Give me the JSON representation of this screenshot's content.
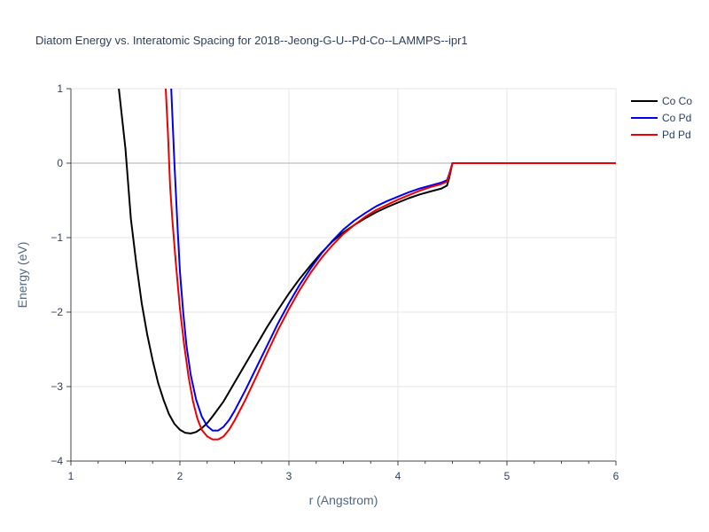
{
  "chart_data": {
    "type": "line",
    "title": "Diatom Energy vs. Interatomic Spacing for 2018--Jeong-G-U--Pd-Co--LAMMPS--ipr1",
    "xlabel": "r (Angstrom)",
    "ylabel": "Energy (eV)",
    "xlim": [
      1,
      6
    ],
    "ylim": [
      -4,
      1
    ],
    "xticks": [
      1,
      2,
      3,
      4,
      5,
      6
    ],
    "yticks": [
      1,
      0,
      -1,
      -2,
      -3,
      -4
    ],
    "ytick_labels": [
      "1",
      "0",
      "−1",
      "−2",
      "−3",
      "−4"
    ],
    "grid": true,
    "legend_position": "top-right",
    "series": [
      {
        "name": "Co Co",
        "color": "#000000",
        "x": [
          1.44,
          1.47,
          1.5,
          1.55,
          1.6,
          1.65,
          1.7,
          1.75,
          1.8,
          1.85,
          1.9,
          1.95,
          2.0,
          2.05,
          2.1,
          2.15,
          2.2,
          2.25,
          2.3,
          2.4,
          2.5,
          2.6,
          2.7,
          2.8,
          2.9,
          3.0,
          3.1,
          3.2,
          3.3,
          3.4,
          3.5,
          3.6,
          3.7,
          3.8,
          3.9,
          4.0,
          4.1,
          4.2,
          4.3,
          4.4,
          4.45,
          4.47,
          4.5,
          5.0,
          5.5,
          6.0
        ],
        "y": [
          1.0,
          0.6,
          0.2,
          -0.75,
          -1.35,
          -1.88,
          -2.3,
          -2.65,
          -2.95,
          -3.18,
          -3.37,
          -3.5,
          -3.58,
          -3.62,
          -3.63,
          -3.61,
          -3.56,
          -3.49,
          -3.4,
          -3.2,
          -2.95,
          -2.7,
          -2.45,
          -2.2,
          -1.97,
          -1.75,
          -1.55,
          -1.37,
          -1.2,
          -1.05,
          -0.93,
          -0.83,
          -0.74,
          -0.66,
          -0.59,
          -0.53,
          -0.47,
          -0.42,
          -0.38,
          -0.34,
          -0.3,
          -0.2,
          0.0,
          0.0,
          0.0,
          0.0
        ]
      },
      {
        "name": "Co Pd",
        "color": "#0000ee",
        "x": [
          1.92,
          1.95,
          1.98,
          2.0,
          2.03,
          2.06,
          2.1,
          2.15,
          2.2,
          2.25,
          2.3,
          2.35,
          2.4,
          2.45,
          2.5,
          2.6,
          2.7,
          2.8,
          2.9,
          3.0,
          3.1,
          3.2,
          3.3,
          3.4,
          3.5,
          3.6,
          3.7,
          3.8,
          3.9,
          4.0,
          4.1,
          4.2,
          4.3,
          4.4,
          4.45,
          4.47,
          4.5,
          5.0,
          5.5,
          6.0
        ],
        "y": [
          1.0,
          0.0,
          -0.9,
          -1.45,
          -2.0,
          -2.45,
          -2.85,
          -3.18,
          -3.4,
          -3.53,
          -3.59,
          -3.59,
          -3.54,
          -3.45,
          -3.33,
          -3.05,
          -2.75,
          -2.45,
          -2.15,
          -1.88,
          -1.63,
          -1.41,
          -1.21,
          -1.04,
          -0.89,
          -0.77,
          -0.67,
          -0.58,
          -0.51,
          -0.45,
          -0.39,
          -0.34,
          -0.3,
          -0.26,
          -0.23,
          -0.15,
          0.0,
          0.0,
          0.0,
          0.0
        ]
      },
      {
        "name": "Pd Pd",
        "color": "#ee0000",
        "x": [
          1.87,
          1.89,
          1.91,
          1.93,
          1.96,
          2.0,
          2.04,
          2.08,
          2.12,
          2.16,
          2.2,
          2.25,
          2.3,
          2.35,
          2.4,
          2.45,
          2.5,
          2.6,
          2.7,
          2.8,
          2.9,
          3.0,
          3.1,
          3.2,
          3.3,
          3.4,
          3.5,
          3.6,
          3.7,
          3.8,
          3.9,
          4.0,
          4.1,
          4.2,
          4.3,
          4.4,
          4.45,
          4.47,
          4.5,
          5.0,
          5.5,
          6.0
        ],
        "y": [
          1.0,
          0.4,
          -0.3,
          -0.75,
          -1.3,
          -1.95,
          -2.45,
          -2.87,
          -3.2,
          -3.43,
          -3.58,
          -3.67,
          -3.71,
          -3.71,
          -3.67,
          -3.58,
          -3.46,
          -3.18,
          -2.87,
          -2.55,
          -2.24,
          -1.96,
          -1.7,
          -1.47,
          -1.27,
          -1.1,
          -0.95,
          -0.83,
          -0.72,
          -0.63,
          -0.56,
          -0.49,
          -0.43,
          -0.37,
          -0.32,
          -0.28,
          -0.25,
          -0.17,
          0.0,
          0.0,
          0.0,
          0.0
        ]
      }
    ]
  }
}
